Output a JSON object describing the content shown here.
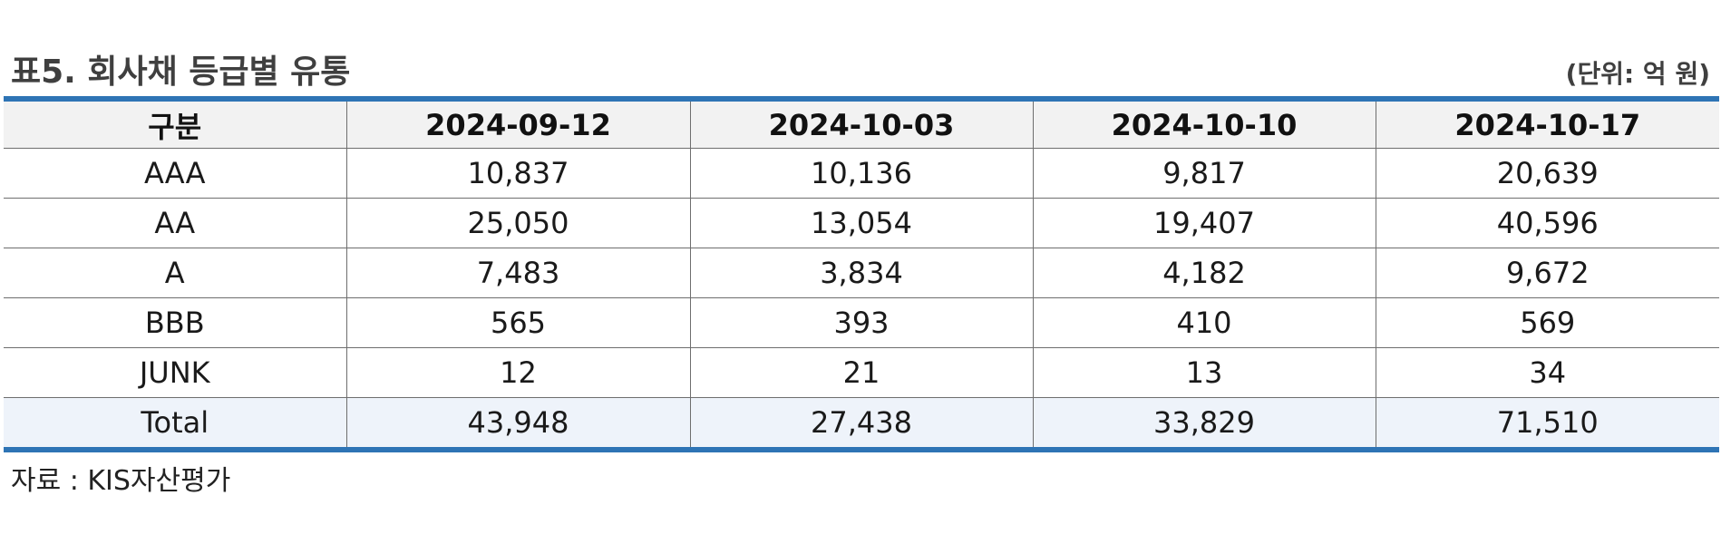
{
  "header": {
    "title": "표5. 회사채 등급별 유통",
    "unit": "(단위: 억 원)"
  },
  "table": {
    "columns": [
      "구분",
      "2024-09-12",
      "2024-10-03",
      "2024-10-10",
      "2024-10-17"
    ],
    "rows": [
      [
        "AAA",
        "10,837",
        "10,136",
        "9,817",
        "20,639"
      ],
      [
        "AA",
        "25,050",
        "13,054",
        "19,407",
        "40,596"
      ],
      [
        "A",
        "7,483",
        "3,834",
        "4,182",
        "9,672"
      ],
      [
        "BBB",
        "565",
        "393",
        "410",
        "569"
      ],
      [
        "JUNK",
        "12",
        "21",
        "13",
        "34"
      ],
      [
        "Total",
        "43,948",
        "27,438",
        "33,829",
        "71,510"
      ]
    ]
  },
  "footer": {
    "source": "자료 : KIS자산평가"
  },
  "colors": {
    "accent_border": "#2e74b5",
    "header_background": "#f2f2f2",
    "total_row_background": "#eef3fa"
  }
}
